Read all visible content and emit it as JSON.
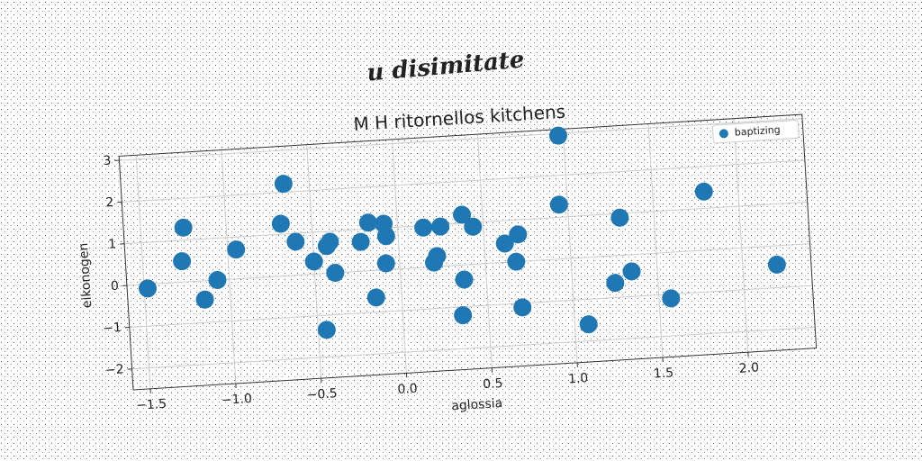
{
  "page_title": "u disimitate",
  "chart_data": {
    "type": "scatter",
    "title": "M H ritornellos kitchens",
    "x_label": "aglossia",
    "y_label": "eikonogen",
    "legend_position": "upper right",
    "grid": true,
    "series": [
      {
        "name": "baptizing",
        "color": "#1f77b4",
        "x": [
          -1.48,
          -1.25,
          -1.27,
          -1.15,
          -1.07,
          -0.95,
          -0.68,
          -0.65,
          -0.6,
          -0.5,
          -0.45,
          -0.4,
          -0.42,
          -0.38,
          -0.22,
          -0.17,
          -0.15,
          -0.08,
          -0.07,
          -0.08,
          0.15,
          0.2,
          0.22,
          0.25,
          0.35,
          0.37,
          0.38,
          0.44,
          0.62,
          0.68,
          0.7,
          0.7,
          0.95,
          0.97,
          1.08,
          1.25,
          1.3,
          1.35,
          1.57,
          1.8,
          2.2
        ],
        "values": [
          -0.1,
          1.3,
          0.5,
          -0.45,
          0.0,
          0.7,
          1.25,
          2.2,
          0.8,
          0.3,
          -1.35,
          0.75,
          0.65,
          0.0,
          0.7,
          1.15,
          -0.65,
          1.1,
          0.8,
          0.15,
          0.95,
          0.1,
          0.25,
          0.95,
          -1.2,
          -0.35,
          1.2,
          0.9,
          0.45,
          0.0,
          0.65,
          -1.1,
          1.3,
          2.95,
          -1.6,
          -0.65,
          0.9,
          -0.4,
          -1.1,
          1.4,
          -0.45
        ]
      }
    ],
    "xlim": [
      -1.6,
      2.4
    ],
    "xticks": [
      {
        "value": -1.5,
        "label": "−1.5"
      },
      {
        "value": -1.0,
        "label": "−1.0"
      },
      {
        "value": -0.5,
        "label": "−0.5"
      },
      {
        "value": 0,
        "label": "0.0"
      },
      {
        "value": 0.5,
        "label": "0.5"
      },
      {
        "value": 1.0,
        "label": "1.0"
      },
      {
        "value": 1.5,
        "label": "1.5"
      },
      {
        "value": 2.0,
        "label": "2.0"
      }
    ],
    "ylim": [
      -2.5,
      3.1
    ],
    "yticks": [
      {
        "value": -2,
        "label": "−2"
      },
      {
        "value": -1,
        "label": "−1"
      },
      0,
      1,
      2,
      3
    ]
  }
}
